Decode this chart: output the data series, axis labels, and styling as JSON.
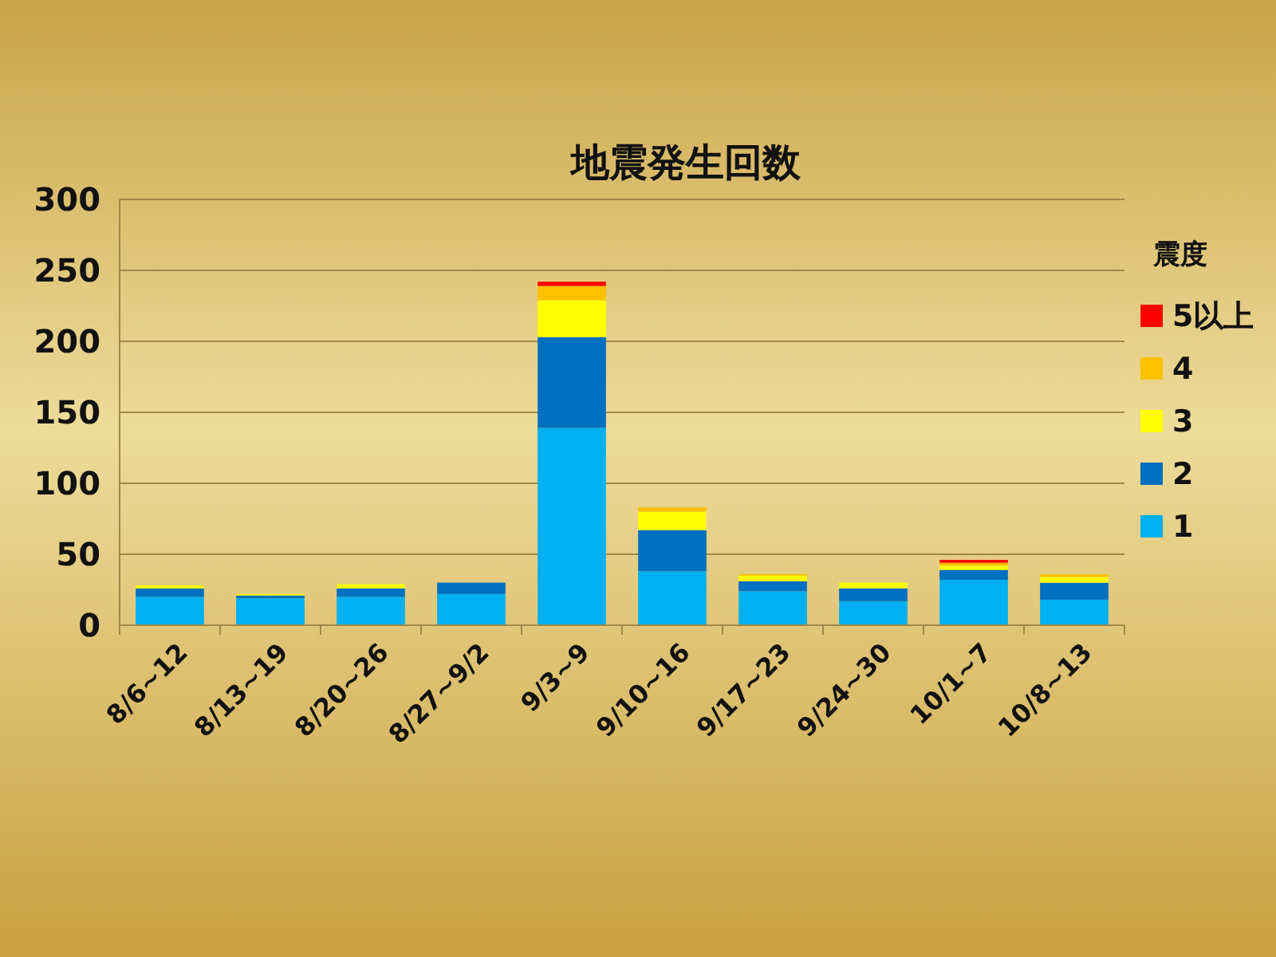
{
  "chart_data": {
    "type": "bar",
    "title": "地震発生回数",
    "legend_title": "震度",
    "stacked": true,
    "legend": "right",
    "grid": "y",
    "categories": [
      "8/6~12",
      "8/13~19",
      "8/20~26",
      "8/27~9/2",
      "9/3~9",
      "9/10~16",
      "9/17~23",
      "9/24~30",
      "10/1~7",
      "10/8~13"
    ],
    "ylim": [
      0,
      300
    ],
    "yticks": [
      0,
      50,
      100,
      150,
      200,
      250,
      300
    ],
    "series": [
      {
        "name": "1",
        "color": "#00b0f0",
        "values": [
          20,
          19,
          20,
          22,
          139,
          38,
          24,
          17,
          32,
          18
        ]
      },
      {
        "name": "2",
        "color": "#0070c0",
        "values": [
          6,
          2,
          6,
          8,
          64,
          29,
          7,
          9,
          7,
          12
        ]
      },
      {
        "name": "3",
        "color": "#ffff00",
        "values": [
          2,
          1,
          3,
          0,
          26,
          13,
          4,
          4,
          3,
          4
        ]
      },
      {
        "name": "4",
        "color": "#ffc000",
        "values": [
          0,
          0,
          0,
          0,
          10,
          3,
          1,
          0,
          2,
          2
        ]
      },
      {
        "name": "5以上",
        "color": "#ff0000",
        "values": [
          0,
          0,
          0,
          0,
          3,
          0,
          0,
          0,
          2,
          0
        ]
      }
    ]
  }
}
